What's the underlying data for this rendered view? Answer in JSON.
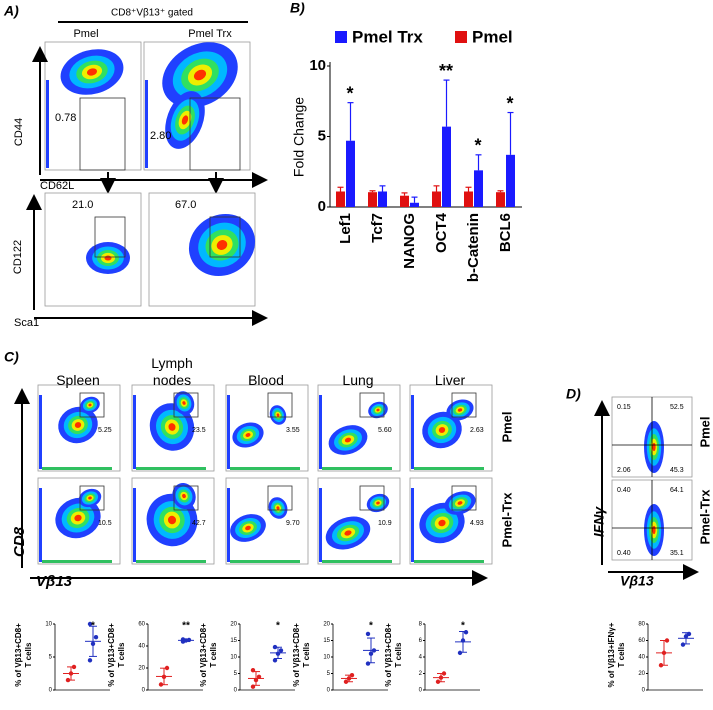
{
  "panel_a": {
    "label": "A)",
    "gate": "CD8⁺Vβ13⁺ gated",
    "columns": [
      "Pmel",
      "Pmel Trx"
    ],
    "top": {
      "y_axis": "CD44",
      "x_axis": "CD62L",
      "gates": [
        "0.78",
        "2.80"
      ]
    },
    "bottom": {
      "y_axis": "CD122",
      "x_axis": "Sca1",
      "gates": [
        "21.0",
        "67.0"
      ]
    }
  },
  "panel_b": {
    "label": "B)"
  },
  "panel_c": {
    "label": "C)",
    "tissues": [
      "Spleen",
      "Lymph nodes",
      "Blood",
      "Lung",
      "Liver"
    ],
    "rows": [
      "Pmel",
      "Pmel-Trx"
    ],
    "y_axis": "CD8",
    "x_axis": "Vβ13",
    "gates": [
      [
        "5.25",
        "23.5",
        "3.55",
        "5.60",
        "2.63"
      ],
      [
        "10.5",
        "42.7",
        "9.70",
        "10.9",
        "4.93"
      ]
    ]
  },
  "panel_d": {
    "label": "D)",
    "rows": [
      "Pmel",
      "Pmel-Trx"
    ],
    "y_axis": "IFNγ",
    "x_axis": "Vβ13",
    "quadrants": [
      [
        "0.15",
        "52.5",
        "2.06",
        "45.3"
      ],
      [
        "0.40",
        "64.1",
        "0.40",
        "35.1"
      ]
    ]
  },
  "chart_data": [
    {
      "type": "bar",
      "ylabel": "Fold Change",
      "categories": [
        "Lef1",
        "Tcf7",
        "NANOG",
        "OCT4",
        "b-Catenin",
        "BCL6"
      ],
      "series": [
        {
          "name": "Pmel Trx",
          "color": "#1a1aff",
          "values": [
            4.7,
            1.1,
            0.3,
            5.7,
            2.6,
            3.7
          ],
          "errors": [
            2.7,
            0.4,
            0.4,
            3.3,
            1.1,
            3.0
          ]
        },
        {
          "name": "Pmel",
          "color": "#e01010",
          "values": [
            1.1,
            1.05,
            0.8,
            1.1,
            1.1,
            1.05
          ],
          "errors": [
            0.3,
            0.1,
            0.2,
            0.4,
            0.3,
            0.1
          ]
        }
      ],
      "annotations": [
        "*",
        null,
        null,
        "**",
        "*",
        "*"
      ],
      "ylim": [
        0,
        10
      ],
      "yticks": [
        0,
        5,
        10
      ]
    },
    {
      "type": "dot",
      "ylabel": [
        "% of Vβ13+CD8+",
        "T cells"
      ],
      "ylim": [
        0,
        10
      ],
      "yticks": [
        0,
        5,
        10
      ],
      "annotation": "*",
      "series": [
        {
          "color": "#e02020",
          "values": [
            1.5,
            2.5,
            3.5
          ]
        },
        {
          "color": "#2030c0",
          "values": [
            4.5,
            7,
            8,
            10
          ]
        }
      ]
    },
    {
      "type": "dot",
      "ylabel": [
        "% of Vβ13+CD8+",
        "T cells"
      ],
      "ylim": [
        0,
        60
      ],
      "yticks": [
        0,
        20,
        40,
        60
      ],
      "annotation": "**",
      "series": [
        {
          "color": "#e02020",
          "values": [
            5,
            12,
            20
          ]
        },
        {
          "color": "#2030c0",
          "values": [
            44,
            45,
            45.5,
            46
          ]
        }
      ]
    },
    {
      "type": "dot",
      "ylabel": [
        "% of Vβ13+CD8+",
        "T cells"
      ],
      "ylim": [
        0,
        20
      ],
      "yticks": [
        0,
        5,
        10,
        15,
        20
      ],
      "annotation": "*",
      "series": [
        {
          "color": "#e02020",
          "values": [
            1,
            3,
            4,
            6
          ]
        },
        {
          "color": "#2030c0",
          "values": [
            9,
            11,
            12,
            13
          ]
        }
      ]
    },
    {
      "type": "dot",
      "ylabel": [
        "% of Vβ13+CD8+",
        "T cells"
      ],
      "ylim": [
        0,
        20
      ],
      "yticks": [
        0,
        5,
        10,
        15,
        20
      ],
      "annotation": "*",
      "series": [
        {
          "color": "#e02020",
          "values": [
            2.5,
            3.5,
            4.5
          ]
        },
        {
          "color": "#2030c0",
          "values": [
            8,
            11,
            12,
            17
          ]
        }
      ]
    },
    {
      "type": "dot",
      "ylabel": [
        "% of Vβ13+CD8+",
        "T cells"
      ],
      "ylim": [
        0,
        8
      ],
      "yticks": [
        0,
        2,
        4,
        6,
        8
      ],
      "annotation": "*",
      "series": [
        {
          "color": "#e02020",
          "values": [
            1,
            1.5,
            2
          ]
        },
        {
          "color": "#2030c0",
          "values": [
            4.5,
            6,
            7
          ]
        }
      ]
    },
    {
      "type": "dot",
      "ylabel": [
        "% of Vβ13+IFNγ+",
        "T cells"
      ],
      "ylim": [
        0,
        80
      ],
      "yticks": [
        0,
        20,
        40,
        60,
        80
      ],
      "series": [
        {
          "color": "#e02020",
          "values": [
            30,
            45,
            60
          ]
        },
        {
          "color": "#2030c0",
          "values": [
            55,
            65,
            68
          ]
        }
      ]
    }
  ]
}
